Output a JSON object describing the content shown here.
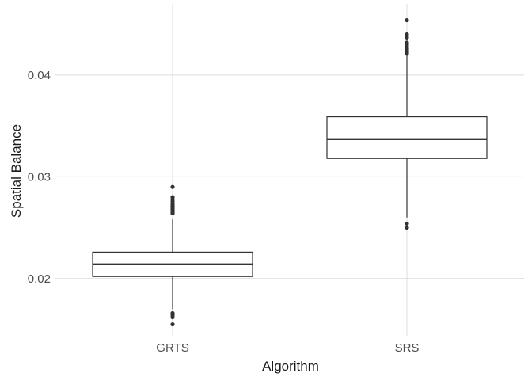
{
  "chart_data": {
    "type": "box",
    "xlabel": "Algorithm",
    "ylabel": "Spatial Balance",
    "ylim": [
      0.0143,
      0.047
    ],
    "y_ticks": [
      0.02,
      0.03,
      0.04
    ],
    "y_tick_labels": [
      "0.02",
      "0.03",
      "0.04"
    ],
    "grid": true,
    "categories": [
      "GRTS",
      "SRS"
    ],
    "boxes": [
      {
        "category": "GRTS",
        "whisker_low": 0.017,
        "q1": 0.0202,
        "median": 0.0214,
        "q3": 0.0226,
        "whisker_high": 0.0258,
        "outliers": [
          0.029,
          0.028,
          0.0278,
          0.0276,
          0.0274,
          0.0273,
          0.0272,
          0.0271,
          0.027,
          0.0269,
          0.0268,
          0.0267,
          0.0266,
          0.0265,
          0.0264,
          0.0166,
          0.0164,
          0.0162,
          0.0155
        ]
      },
      {
        "category": "SRS",
        "whisker_low": 0.026,
        "q1": 0.0318,
        "median": 0.0337,
        "q3": 0.0359,
        "whisker_high": 0.0419,
        "outliers": [
          0.0454,
          0.044,
          0.0437,
          0.0432,
          0.043,
          0.0428,
          0.0426,
          0.0425,
          0.0424,
          0.0423,
          0.0422,
          0.0421,
          0.0254,
          0.025
        ]
      }
    ]
  }
}
